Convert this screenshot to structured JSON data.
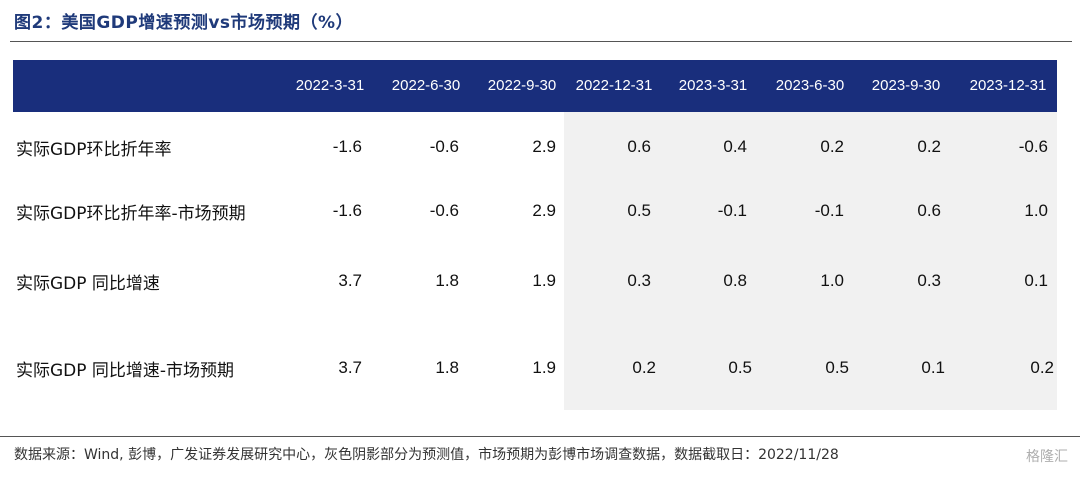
{
  "title": "图2：美国GDP增速预测vs市场预期（%）",
  "columns": [
    "2022-3-31",
    "2022-6-30",
    "2022-9-30",
    "2022-12-31",
    "2023-3-31",
    "2023-6-30",
    "2023-9-30",
    "2023-12-31"
  ],
  "rows": [
    {
      "label": "实际GDP环比折年率",
      "values": [
        "-1.6",
        "-0.6",
        "2.9",
        "0.6",
        "0.4",
        "0.2",
        "0.2",
        "-0.6"
      ]
    },
    {
      "label": "实际GDP环比折年率-市场预期",
      "values": [
        "-1.6",
        "-0.6",
        "2.9",
        "0.5",
        "-0.1",
        "-0.1",
        "0.6",
        "1.0"
      ]
    },
    {
      "label": "实际GDP 同比增速",
      "values": [
        "3.7",
        "1.8",
        "1.9",
        "0.3",
        "0.8",
        "1.0",
        "0.3",
        "0.1"
      ]
    },
    {
      "label": "实际GDP 同比增速-市场预期",
      "values": [
        "3.7",
        "1.8",
        "1.9",
        "0.2",
        "0.5",
        "0.5",
        "0.1",
        "0.2"
      ]
    }
  ],
  "footer": "数据来源：Wind, 彭博，广发证券发展研究中心，灰色阴影部分为预测值，市场预期为彭博市场调查数据，数据截取日：2022/11/28",
  "watermark": "格隆汇",
  "colors": {
    "header_band": "#192e7c",
    "forecast_shade": "#f1f1f1",
    "title": "#1f3a7a"
  }
}
